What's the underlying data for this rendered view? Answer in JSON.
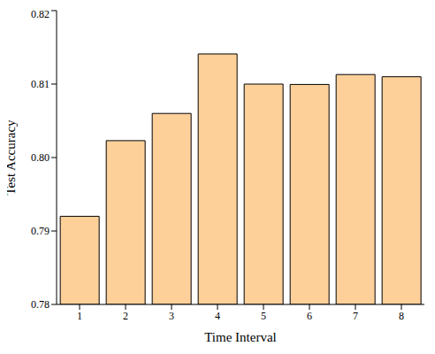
{
  "chart_data": {
    "type": "bar",
    "x_label": "Time Interval",
    "y_label": "Test Accuracy",
    "categories": [
      "1",
      "2",
      "3",
      "4",
      "5",
      "6",
      "7",
      "8"
    ],
    "values": [
      0.792,
      0.8023,
      0.806,
      0.8141,
      0.81,
      0.80995,
      0.8113,
      0.811
    ],
    "color": "#fdd09a",
    "ylim": [
      0.78,
      0.82
    ],
    "yticks": [
      0.78,
      0.79,
      {
        "value": 0.8,
        "label": "0.80"
      },
      0.81,
      0.82
    ],
    "grid": false
  }
}
